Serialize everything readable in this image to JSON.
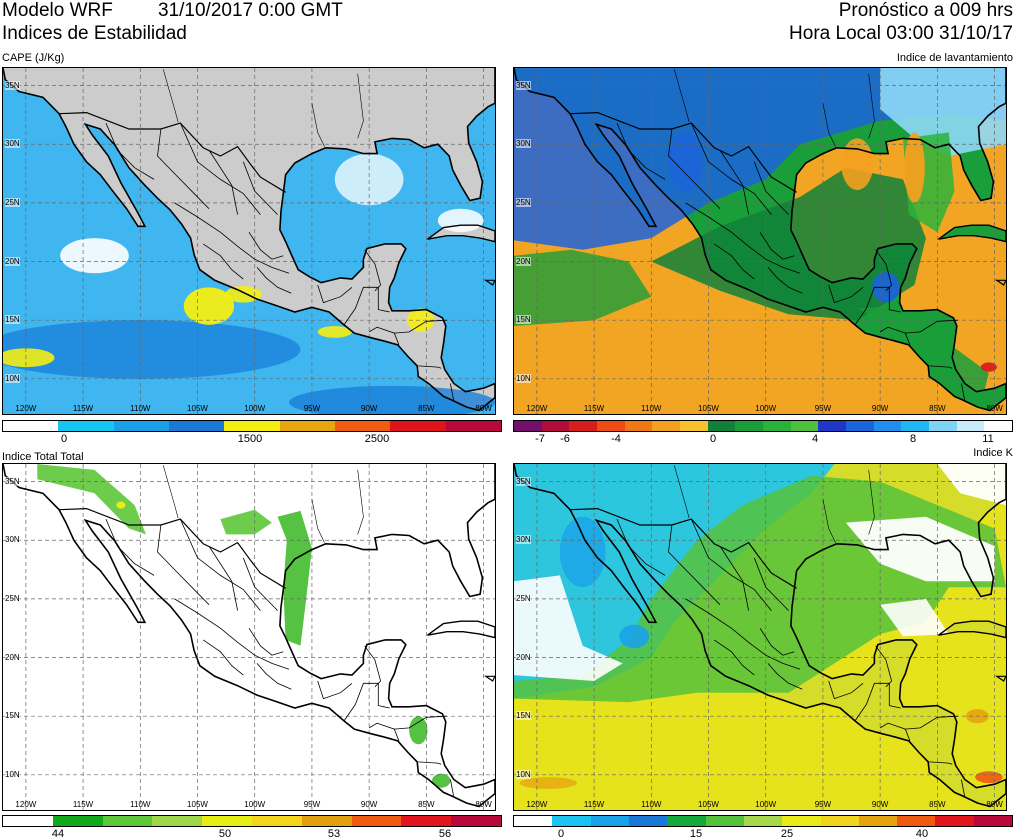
{
  "header": {
    "model": "Modelo WRF",
    "run": "31/10/2017 0:00 GMT",
    "forecast": "Pronóstico a 009 hrs",
    "subtitle": "Indices de Estabilidad",
    "local_time": "Hora Local 03:00 31/10/17"
  },
  "axes": {
    "lat_labels": [
      "35N",
      "30N",
      "25N",
      "20N",
      "15N",
      "10N"
    ],
    "lon_labels": [
      "120W",
      "115W",
      "110W",
      "105W",
      "100W",
      "95W",
      "90W",
      "85W",
      "80W"
    ]
  },
  "panels": [
    {
      "id": "cape",
      "title": "CAPE (J/Kg)",
      "title_align": "left",
      "ocean": "#3fb6ef",
      "colorbar": [
        "#ffffff",
        "#13c7f2",
        "#1aa0e8",
        "#1a79d6",
        "#f4ee12",
        "#e5a60f",
        "#f05d10",
        "#e0121a",
        "#b8093a"
      ],
      "ticks": [
        "0",
        "1500",
        "2500"
      ]
    },
    {
      "id": "lifted",
      "title": "Indice de lavantamiento",
      "title_align": "right",
      "ocean": "#f2a523",
      "colorbar": [
        "#740f6b",
        "#b20c3b",
        "#d81d1d",
        "#f04b14",
        "#f07815",
        "#f4a020",
        "#f6c12c",
        "#11813a",
        "#1a9e3a",
        "#2ab33a",
        "#4dc13d",
        "#1f37c8",
        "#1c63de",
        "#1f8ef0",
        "#20b6f3",
        "#7ed3f6",
        "#c8ecfa",
        "#ffffff"
      ],
      "ticks": [
        "-7",
        "-6",
        "-4",
        "0",
        "4",
        "8",
        "11"
      ]
    },
    {
      "id": "total-totals",
      "title": "Indice Total Total",
      "title_align": "left",
      "ocean": "#ffffff",
      "colorbar": [
        "#ffffff",
        "#11a81c",
        "#5ec73a",
        "#9ed84a",
        "#e6ee14",
        "#f4d51c",
        "#e39f12",
        "#f05b10",
        "#e0161c",
        "#b80a3a"
      ],
      "ticks": [
        "44",
        "50",
        "53",
        "56"
      ]
    },
    {
      "id": "k-index",
      "title": "Indice K",
      "title_align": "right",
      "ocean": "#e6e21c",
      "colorbar": [
        "#ffffff",
        "#1ac3f2",
        "#1aa2e8",
        "#1a78d6",
        "#15a83a",
        "#56c23c",
        "#a6d84c",
        "#e8ec16",
        "#f2d41c",
        "#e5a30f",
        "#f05a10",
        "#e0161c",
        "#b80a3a"
      ],
      "ticks": [
        "0",
        "15",
        "25",
        "40"
      ]
    }
  ]
}
